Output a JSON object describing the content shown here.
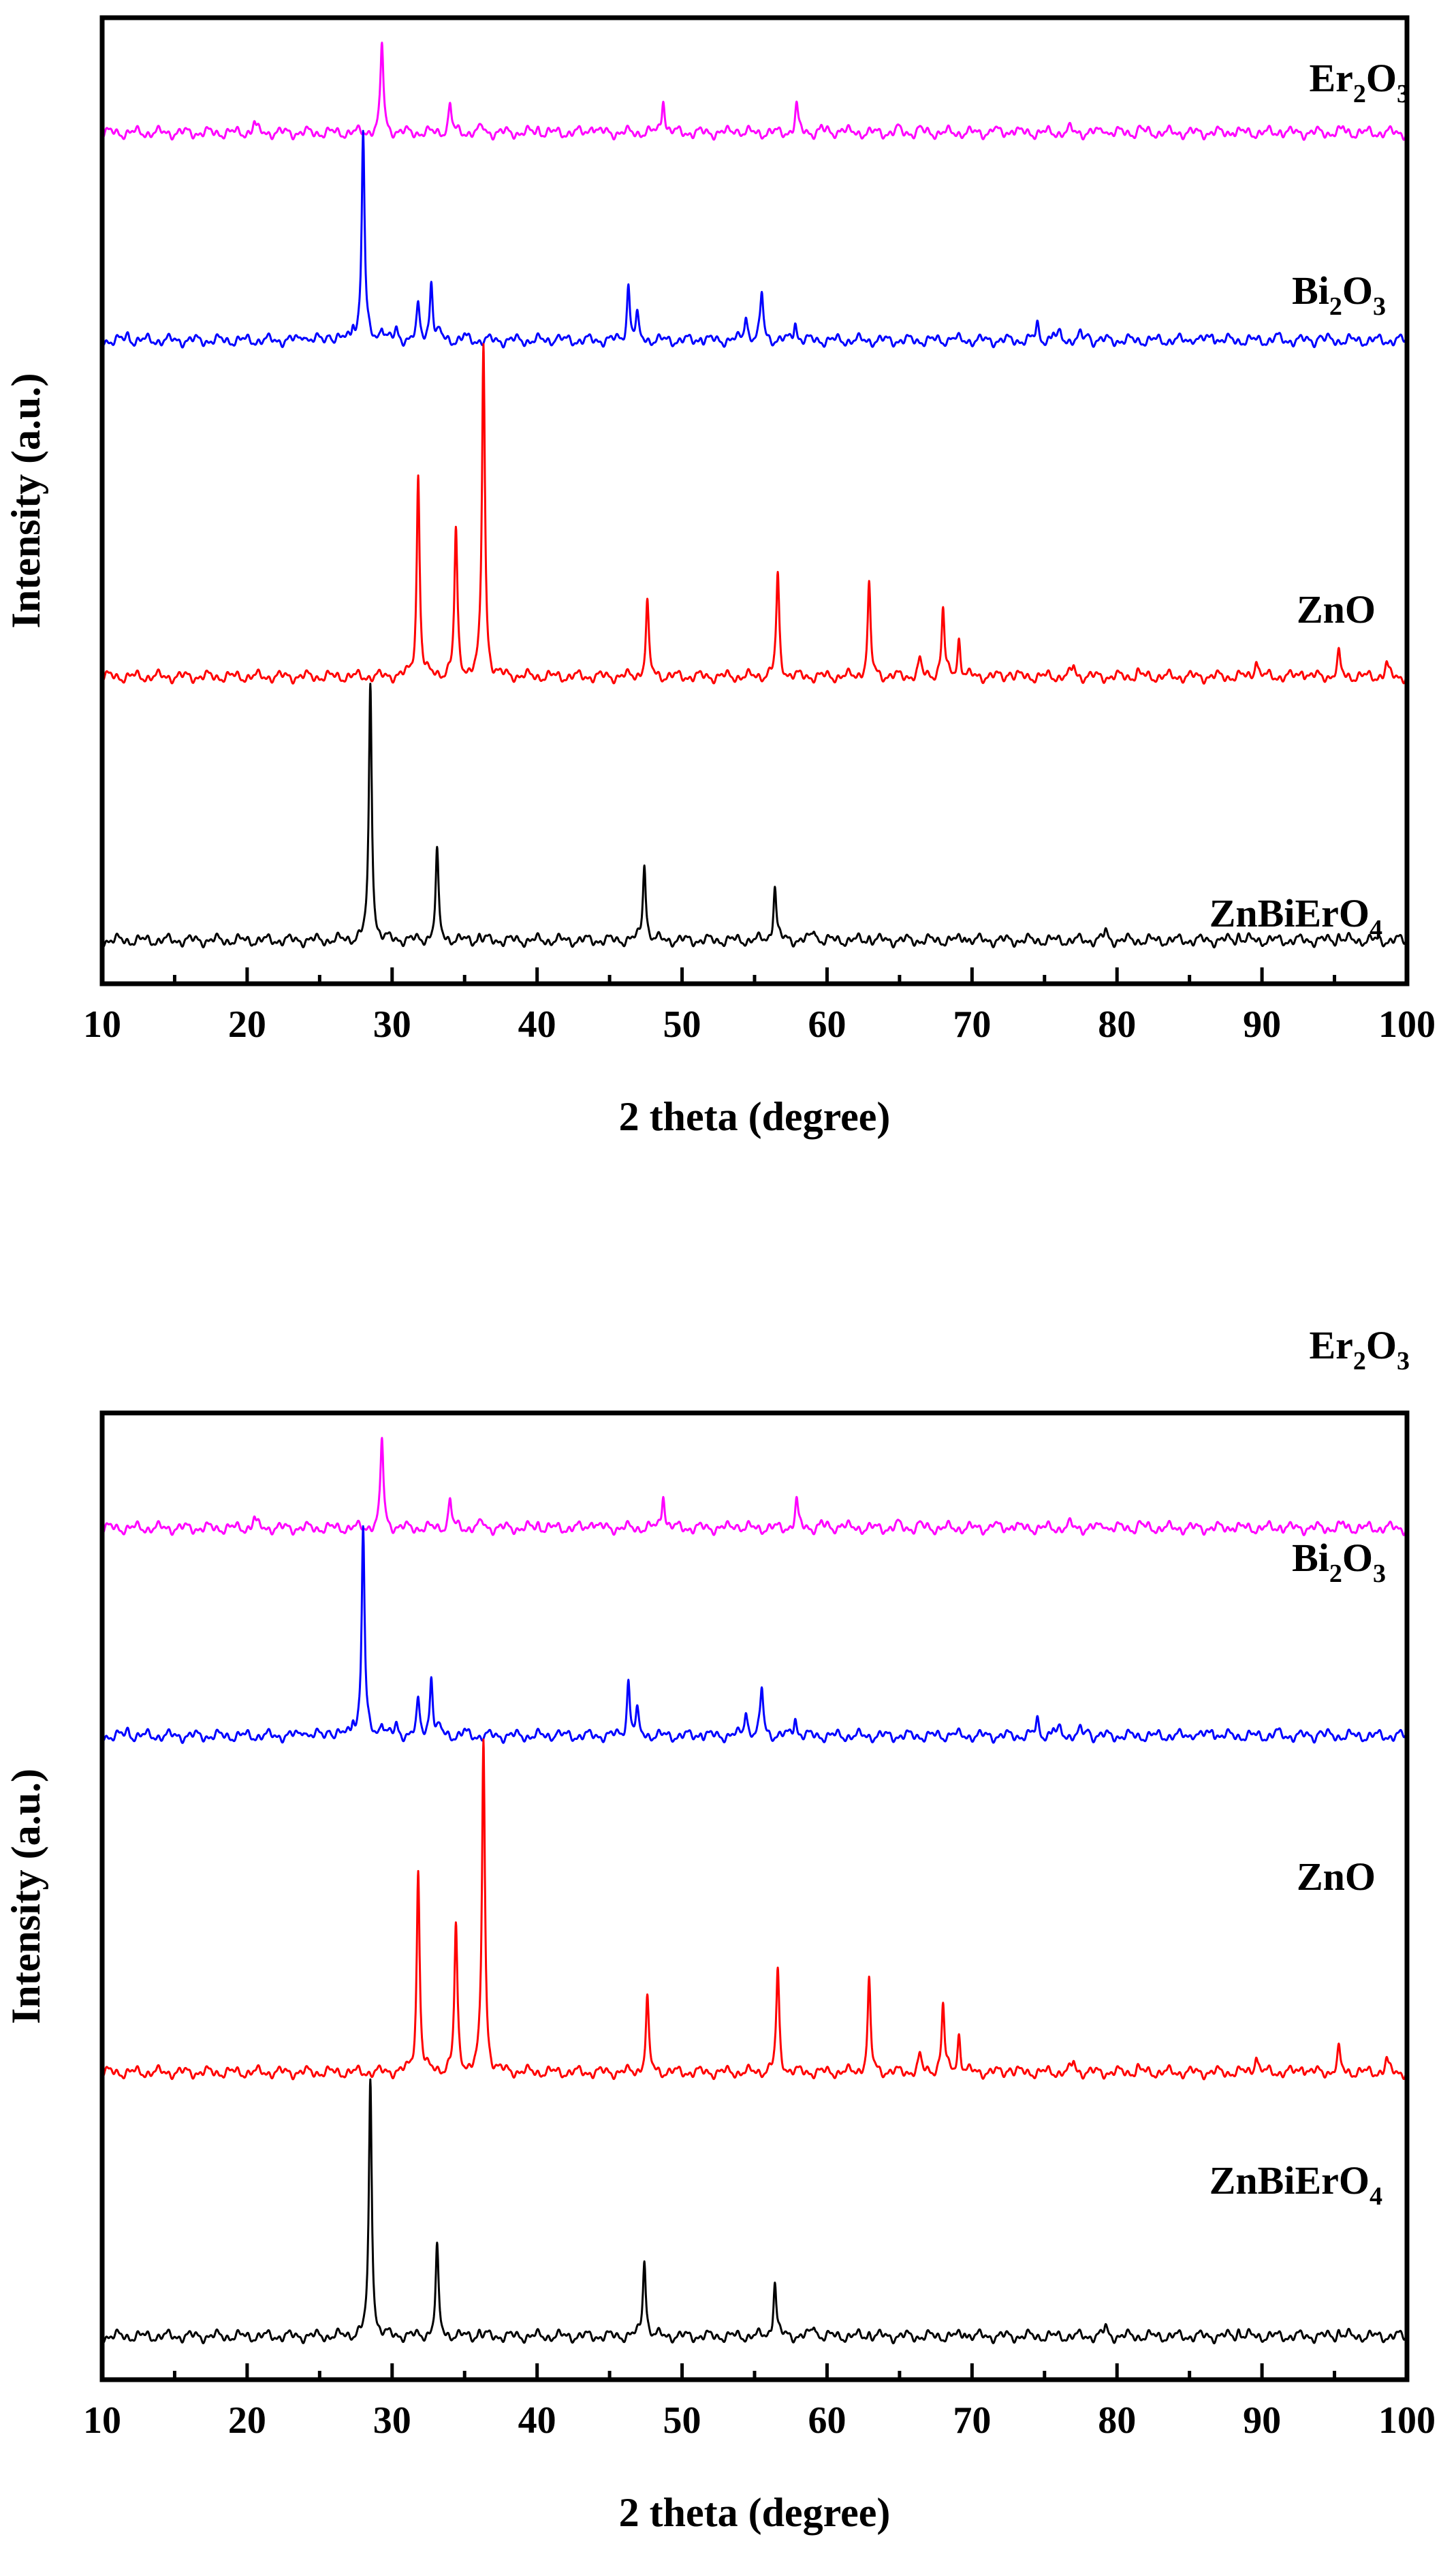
{
  "chart_data": [
    {
      "type": "line",
      "title": "",
      "xlabel": "2 theta (degree)",
      "ylabel": "Intensity (a.u.)",
      "xlim": [
        10,
        100
      ],
      "ylim": [
        0,
        100
      ],
      "x_ticks": [
        10,
        20,
        30,
        40,
        50,
        60,
        70,
        80,
        90,
        100
      ],
      "x_tick_labels": [
        "10",
        "20",
        "30",
        "40",
        "50",
        "60",
        "70",
        "80",
        "90",
        "100"
      ],
      "y_ticks_visible": false,
      "grid": false,
      "series": [
        {
          "name": "Er2O3",
          "label_main": "Er",
          "label_sub1": "2",
          "label_mid": "O",
          "label_sub2": "3",
          "color": "#ff00ff",
          "baseline": 88.1,
          "peaks": [
            [
              20.5,
              1.1
            ],
            [
              29.3,
              9.3
            ],
            [
              34.0,
              3.0
            ],
            [
              36.2,
              0.7
            ],
            [
              40.1,
              0.5
            ],
            [
              43.8,
              1.1
            ],
            [
              48.7,
              3.7
            ],
            [
              53.7,
              0.6
            ],
            [
              57.9,
              2.8
            ],
            [
              59.6,
              0.5
            ],
            [
              61.0,
              0.6
            ],
            [
              64.9,
              0.4
            ],
            [
              66.4,
              0.4
            ],
            [
              71.5,
              0.4
            ],
            [
              72.8,
              0.5
            ],
            [
              76.8,
              0.4
            ],
            [
              79.1,
              0.6
            ],
            [
              81.6,
              0.5
            ],
            [
              88.0,
              0.3
            ],
            [
              91.3,
              0.3
            ],
            [
              95.6,
              0.4
            ]
          ]
        },
        {
          "name": "Bi2O3",
          "label_main": "Bi",
          "label_sub1": "2",
          "label_mid": "O",
          "label_sub2": "3",
          "color": "#0000ff",
          "baseline": 66.6,
          "peaks": [
            [
              11.8,
              0.6
            ],
            [
              23.9,
              0.9
            ],
            [
              25.7,
              0.8
            ],
            [
              27.3,
              1.4
            ],
            [
              28.0,
              21.6
            ],
            [
              29.3,
              1.6
            ],
            [
              30.3,
              1.0
            ],
            [
              31.8,
              3.4
            ],
            [
              32.7,
              6.3
            ],
            [
              33.3,
              0.7
            ],
            [
              35.0,
              0.4
            ],
            [
              41.3,
              0.4
            ],
            [
              46.3,
              5.7
            ],
            [
              46.9,
              2.3
            ],
            [
              51.3,
              0.4
            ],
            [
              54.4,
              2.7
            ],
            [
              55.5,
              4.9
            ],
            [
              57.8,
              2.0
            ],
            [
              68.6,
              0.4
            ],
            [
              74.5,
              1.7
            ],
            [
              75.6,
              0.6
            ],
            [
              76.1,
              0.7
            ],
            [
              77.5,
              0.5
            ],
            [
              78.0,
              0.6
            ],
            [
              85.3,
              0.4
            ],
            [
              86.6,
              0.8
            ],
            [
              91.0,
              0.4
            ],
            [
              94.0,
              0.5
            ]
          ]
        },
        {
          "name": "ZnO",
          "label_main": "ZnO",
          "label_sub1": "",
          "label_mid": "",
          "label_sub2": "",
          "color": "#ff0000",
          "baseline": 31.8,
          "peaks": [
            [
              31.8,
              20.9
            ],
            [
              34.4,
              15.1
            ],
            [
              36.3,
              34.5
            ],
            [
              47.6,
              7.6
            ],
            [
              56.6,
              10.5
            ],
            [
              62.9,
              9.3
            ],
            [
              66.4,
              1.7
            ],
            [
              68.0,
              7.0
            ],
            [
              69.1,
              3.8
            ],
            [
              72.6,
              0.6
            ],
            [
              77.0,
              1.2
            ],
            [
              81.4,
              0.5
            ],
            [
              89.6,
              2.0
            ],
            [
              92.8,
              0.9
            ],
            [
              95.3,
              2.3
            ],
            [
              98.6,
              1.3
            ]
          ]
        },
        {
          "name": "ZnBiErO4",
          "label_main": "ZnBiErO",
          "label_sub1": "",
          "label_mid": "",
          "label_sub2": "4",
          "color": "#000000",
          "baseline": 4.5,
          "peaks": [
            [
              28.5,
              26.5
            ],
            [
              33.1,
              9.0
            ],
            [
              36.0,
              0.5
            ],
            [
              47.4,
              8.2
            ],
            [
              56.4,
              5.7
            ],
            [
              59.1,
              1.3
            ],
            [
              62.9,
              0.4
            ],
            [
              69.5,
              0.6
            ],
            [
              79.2,
              1.0
            ],
            [
              88.4,
              0.7
            ],
            [
              95.3,
              0.6
            ]
          ]
        }
      ]
    },
    {
      "type": "line",
      "title": "",
      "xlabel": "2 theta (degree)",
      "ylabel": "Intensity (a.u.)",
      "xlim": [
        10,
        100
      ],
      "ylim": [
        0,
        100
      ],
      "x_ticks": [
        10,
        20,
        30,
        40,
        50,
        60,
        70,
        80,
        90,
        100
      ],
      "x_tick_labels": [
        "10",
        "20",
        "30",
        "40",
        "50",
        "60",
        "70",
        "80",
        "90",
        "100"
      ],
      "y_ticks_visible": false,
      "grid": false,
      "series": [
        {
          "name": "Er2O3",
          "label_main": "Er",
          "label_sub1": "2",
          "label_mid": "O",
          "label_sub2": "3",
          "color": "#ff00ff",
          "baseline": 88.1,
          "peaks": [
            [
              20.5,
              1.1
            ],
            [
              29.3,
              9.3
            ],
            [
              34.0,
              3.0
            ],
            [
              36.2,
              0.7
            ],
            [
              40.1,
              0.5
            ],
            [
              43.8,
              1.1
            ],
            [
              48.7,
              3.7
            ],
            [
              53.7,
              0.6
            ],
            [
              57.9,
              2.8
            ],
            [
              59.6,
              0.5
            ],
            [
              61.0,
              0.6
            ],
            [
              64.9,
              0.4
            ],
            [
              66.4,
              0.4
            ],
            [
              71.5,
              0.4
            ],
            [
              72.8,
              0.5
            ],
            [
              76.8,
              0.4
            ],
            [
              79.1,
              0.6
            ],
            [
              81.6,
              0.5
            ],
            [
              88.0,
              0.3
            ],
            [
              91.3,
              0.3
            ],
            [
              95.6,
              0.4
            ]
          ]
        },
        {
          "name": "Bi2O3",
          "label_main": "Bi",
          "label_sub1": "2",
          "label_mid": "O",
          "label_sub2": "3",
          "color": "#0000ff",
          "baseline": 66.6,
          "peaks": [
            [
              11.8,
              0.6
            ],
            [
              23.9,
              0.9
            ],
            [
              25.7,
              0.8
            ],
            [
              27.3,
              1.4
            ],
            [
              28.0,
              21.6
            ],
            [
              29.3,
              1.6
            ],
            [
              30.3,
              1.0
            ],
            [
              31.8,
              3.4
            ],
            [
              32.7,
              6.3
            ],
            [
              33.3,
              0.7
            ],
            [
              35.0,
              0.4
            ],
            [
              41.3,
              0.4
            ],
            [
              46.3,
              5.7
            ],
            [
              46.9,
              2.3
            ],
            [
              51.3,
              0.4
            ],
            [
              54.4,
              2.7
            ],
            [
              55.5,
              4.9
            ],
            [
              57.8,
              2.0
            ],
            [
              68.6,
              0.4
            ],
            [
              74.5,
              1.7
            ],
            [
              75.6,
              0.6
            ],
            [
              76.1,
              0.7
            ],
            [
              77.5,
              0.5
            ],
            [
              78.0,
              0.6
            ],
            [
              85.3,
              0.4
            ],
            [
              86.6,
              0.8
            ],
            [
              91.0,
              0.4
            ],
            [
              94.0,
              0.5
            ]
          ]
        },
        {
          "name": "ZnO",
          "label_main": "ZnO",
          "label_sub1": "",
          "label_mid": "",
          "label_sub2": "",
          "color": "#ff0000",
          "baseline": 31.8,
          "peaks": [
            [
              31.8,
              20.9
            ],
            [
              34.4,
              15.1
            ],
            [
              36.3,
              34.5
            ],
            [
              47.6,
              7.6
            ],
            [
              56.6,
              10.5
            ],
            [
              62.9,
              9.3
            ],
            [
              66.4,
              1.7
            ],
            [
              68.0,
              7.0
            ],
            [
              69.1,
              3.8
            ],
            [
              72.6,
              0.6
            ],
            [
              77.0,
              1.2
            ],
            [
              81.4,
              0.5
            ],
            [
              89.6,
              2.0
            ],
            [
              92.8,
              0.9
            ],
            [
              95.3,
              2.3
            ],
            [
              98.6,
              1.3
            ]
          ]
        },
        {
          "name": "ZnBiErO4",
          "label_main": "ZnBiErO",
          "label_sub1": "",
          "label_mid": "",
          "label_sub2": "4",
          "color": "#000000",
          "baseline": 4.5,
          "peaks": [
            [
              28.5,
              26.5
            ],
            [
              33.1,
              9.0
            ],
            [
              36.0,
              0.5
            ],
            [
              47.4,
              8.2
            ],
            [
              56.4,
              5.7
            ],
            [
              59.1,
              1.3
            ],
            [
              62.9,
              0.4
            ],
            [
              69.5,
              0.6
            ],
            [
              79.2,
              1.0
            ],
            [
              88.4,
              0.7
            ],
            [
              95.3,
              0.6
            ]
          ]
        }
      ]
    }
  ]
}
